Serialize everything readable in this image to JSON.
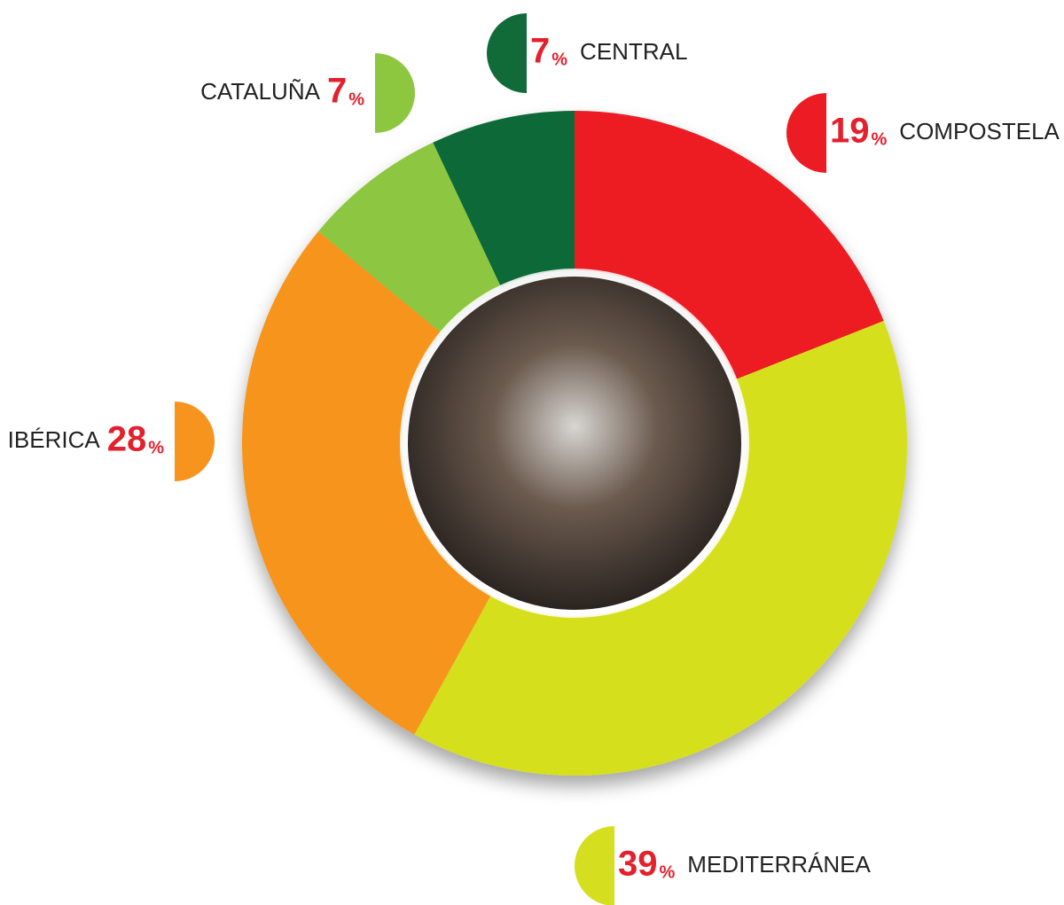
{
  "chart_data": {
    "type": "donut",
    "categories": [
      "COMPOSTELA",
      "MEDITERRÁNEA",
      "IBÉRICA",
      "CATALUÑA",
      "CENTRAL"
    ],
    "values": [
      19,
      39,
      28,
      7,
      7
    ],
    "unit": "%",
    "colors": [
      "#ec1c24",
      "#d5df1f",
      "#f7941d",
      "#8dc63f",
      "#106b38"
    ],
    "label_color": "#e3212d"
  }
}
